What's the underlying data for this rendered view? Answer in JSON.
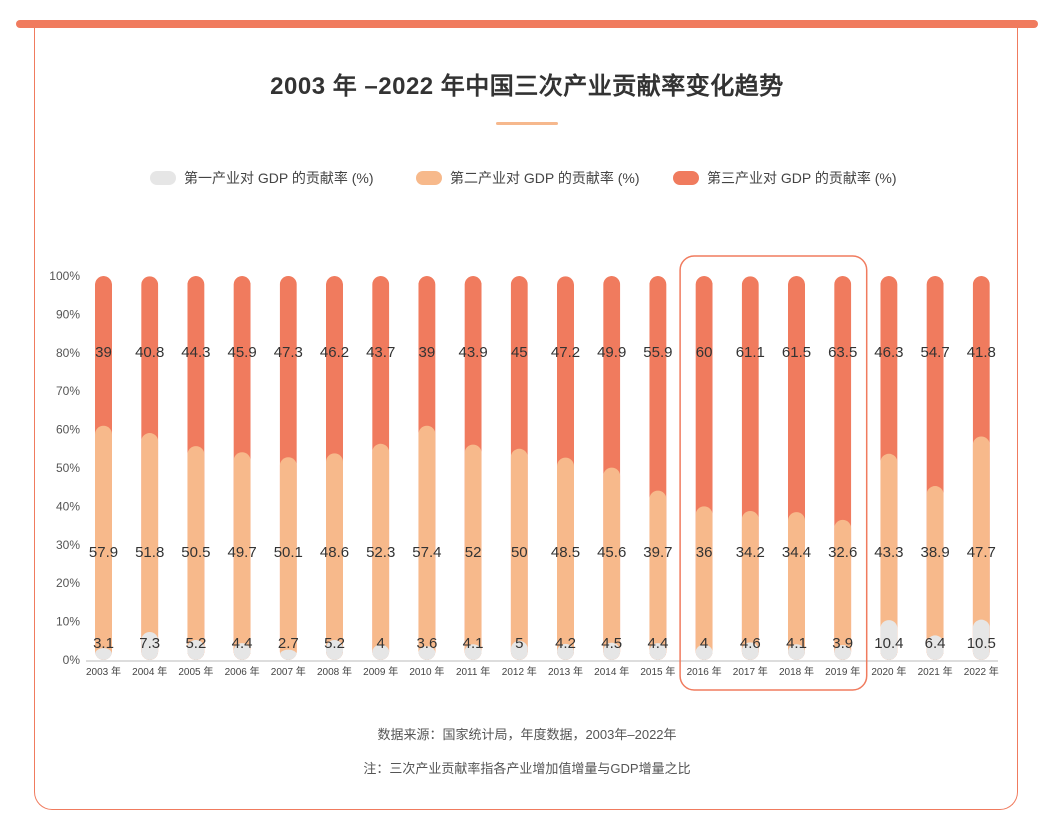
{
  "header": {
    "title": "2003 年 –2022 年中国三次产业贡献率变化趋势"
  },
  "legend": {
    "items": [
      {
        "label": "第一产业对 GDP 的贡献率 (%)",
        "color": "#e6e6e6"
      },
      {
        "label": "第二产业对 GDP 的贡献率 (%)",
        "color": "#f7b98b"
      },
      {
        "label": "第三产业对 GDP 的贡献率 (%)",
        "color": "#f07b5e"
      }
    ]
  },
  "chart_data": {
    "type": "bar",
    "stacked": true,
    "categories": [
      "2003 年",
      "2004 年",
      "2005 年",
      "2006 年",
      "2007 年",
      "2008 年",
      "2009 年",
      "2010 年",
      "2011 年",
      "2012 年",
      "2013 年",
      "2014 年",
      "2015 年",
      "2016 年",
      "2017 年",
      "2018 年",
      "2019 年",
      "2020 年",
      "2021 年",
      "2022 年"
    ],
    "series": [
      {
        "name": "第一产业对 GDP 的贡献率 (%)",
        "color": "#e6e6e6",
        "values": [
          3.1,
          7.3,
          5.2,
          4.4,
          2.7,
          5.2,
          4,
          3.6,
          4.1,
          5,
          4.2,
          4.5,
          4.4,
          4,
          4.6,
          4.1,
          3.9,
          10.4,
          6.4,
          10.5
        ]
      },
      {
        "name": "第二产业对 GDP 的贡献率 (%)",
        "color": "#f7b98b",
        "values": [
          57.9,
          51.8,
          50.5,
          49.7,
          50.1,
          48.6,
          52.3,
          57.4,
          52,
          50,
          48.5,
          45.6,
          39.7,
          36,
          34.2,
          34.4,
          32.6,
          43.3,
          38.9,
          47.7
        ]
      },
      {
        "name": "第三产业对 GDP 的贡献率 (%)",
        "color": "#f07b5e",
        "values": [
          39,
          40.8,
          44.3,
          45.9,
          47.3,
          46.2,
          43.7,
          39,
          43.9,
          45,
          47.2,
          49.9,
          55.9,
          60,
          61.1,
          61.5,
          63.5,
          46.3,
          54.7,
          41.8
        ]
      }
    ],
    "y_ticks": [
      "0%",
      "10%",
      "20%",
      "30%",
      "40%",
      "50%",
      "60%",
      "70%",
      "80%",
      "90%",
      "100%"
    ],
    "ylim": [
      0,
      100
    ],
    "grid": false,
    "legend_position": "top",
    "highlight_range": [
      "2016 年",
      "2019 年"
    ]
  },
  "footer": {
    "source": "数据来源：国家统计局，年度数据，2003年–2022年",
    "note": "注：三次产业贡献率指各产业增加值增量与GDP增量之比"
  }
}
